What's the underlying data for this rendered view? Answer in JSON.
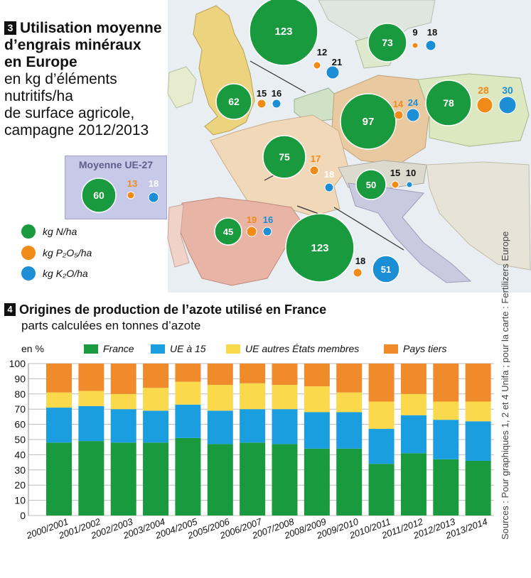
{
  "map": {
    "title_num": "3",
    "title_lines": [
      "Utilisation moyenne",
      "d’engrais minéraux",
      "en Europe"
    ],
    "subtitle_lines": [
      "en kg d’éléments",
      "nutritifs/ha",
      "de surface agricole,",
      "campagne 2012/2013"
    ],
    "average_box": {
      "label": "Moyenne UE-27",
      "n": 60,
      "p": 13,
      "k": 18
    },
    "legend": [
      {
        "key": "n",
        "label": "kg N/ha",
        "color": "#1a9a3e"
      },
      {
        "key": "p",
        "label": "kg P₂O₅/ha",
        "color": "#f08b17"
      },
      {
        "key": "k",
        "label": "kg K₂O/ha",
        "color": "#1b8ed6"
      }
    ],
    "countries_data": [
      {
        "n": 123,
        "p": 12,
        "k": 21
      },
      {
        "n": 62,
        "p": 15,
        "k": 16
      },
      {
        "n": 73,
        "p": 9,
        "k": 18
      },
      {
        "n": 97,
        "p": 14,
        "k": 24
      },
      {
        "n": 78,
        "p": 28,
        "k": 30
      },
      {
        "n": 75,
        "p": 17,
        "k": 18
      },
      {
        "n": 50,
        "p": 15,
        "k": 10
      },
      {
        "n": 45,
        "p": 19,
        "k": 16
      },
      {
        "n": 123,
        "p": 18,
        "k": 51
      }
    ]
  },
  "chart_section": {
    "num": "4",
    "title": "Origines de production de l’azote utilisé en France",
    "subtitle": "parts calculées en tonnes d’azote"
  },
  "source": "Sources : Pour graphiques 1, 2 et 4 Unifa ; pour la carte : Fertilizers Europe",
  "chart_data": {
    "type": "bar",
    "stacked": true,
    "ylabel": "en %",
    "ylim": [
      0,
      100
    ],
    "yticks": [
      0,
      10,
      20,
      30,
      40,
      50,
      60,
      70,
      80,
      90,
      100
    ],
    "grid": true,
    "legend_position": "top",
    "categories": [
      "2000/2001",
      "2001/2002",
      "2002/2003",
      "2003/2004",
      "2004/2005",
      "2005/2006",
      "2006/2007",
      "2007/2008",
      "2008/2009",
      "2009/2010",
      "2010/2011",
      "2011/2012",
      "2012/2013",
      "2013/2014"
    ],
    "series": [
      {
        "name": "France",
        "color": "#1a9a3e",
        "values": [
          48,
          49,
          48,
          48,
          51,
          47,
          48,
          47,
          44,
          44,
          34,
          41,
          37,
          36
        ]
      },
      {
        "name": "UE à 15",
        "color": "#1b9ee0",
        "values": [
          23,
          23,
          22,
          21,
          22,
          22,
          22,
          23,
          24,
          24,
          23,
          25,
          26,
          26
        ]
      },
      {
        "name": "UE autres États membres",
        "color": "#fbd94c",
        "values": [
          10,
          10,
          10,
          15,
          15,
          17,
          17,
          16,
          17,
          13,
          18,
          14,
          12,
          13
        ]
      },
      {
        "name": "Pays tiers",
        "color": "#f08b2c",
        "values": [
          19,
          18,
          20,
          16,
          12,
          14,
          13,
          14,
          15,
          19,
          25,
          20,
          25,
          25
        ]
      }
    ]
  }
}
